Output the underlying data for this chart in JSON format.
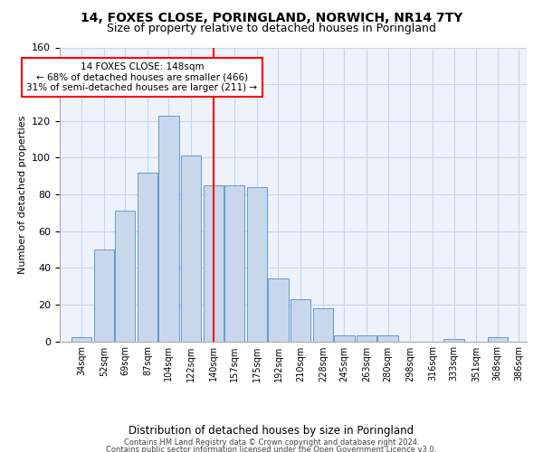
{
  "title": "14, FOXES CLOSE, PORINGLAND, NORWICH, NR14 7TY",
  "subtitle": "Size of property relative to detached houses in Poringland",
  "xlabel": "Distribution of detached houses by size in Poringland",
  "ylabel": "Number of detached properties",
  "bar_color": "#c8d8ec",
  "bar_edge_color": "#6699cc",
  "grid_color": "#c8d4e8",
  "background_color": "#eef2fa",
  "vline_x": 148.5,
  "vline_color": "red",
  "annotation_text": "14 FOXES CLOSE: 148sqm\n← 68% of detached houses are smaller (466)\n31% of semi-detached houses are larger (211) →",
  "footer_line1": "Contains HM Land Registry data © Crown copyright and database right 2024.",
  "footer_line2": "Contains public sector information licensed under the Open Government Licence v3.0.",
  "bins_left_edges": [
    34,
    52,
    69,
    87,
    104,
    122,
    140,
    157,
    175,
    192,
    210,
    228,
    245,
    263,
    280,
    298,
    316,
    333,
    351,
    368
  ],
  "bin_width": 17,
  "bar_heights": [
    2,
    50,
    71,
    92,
    123,
    101,
    85,
    85,
    84,
    34,
    23,
    18,
    3,
    3,
    3,
    0,
    0,
    1,
    0,
    2
  ],
  "xlim": [
    25,
    400
  ],
  "ylim": [
    0,
    160
  ],
  "yticks": [
    0,
    20,
    40,
    60,
    80,
    100,
    120,
    140,
    160
  ],
  "xtick_labels": [
    "34sqm",
    "52sqm",
    "69sqm",
    "87sqm",
    "104sqm",
    "122sqm",
    "140sqm",
    "157sqm",
    "175sqm",
    "192sqm",
    "210sqm",
    "228sqm",
    "245sqm",
    "263sqm",
    "280sqm",
    "298sqm",
    "316sqm",
    "333sqm",
    "351sqm",
    "368sqm",
    "386sqm"
  ],
  "title_fontsize": 10,
  "subtitle_fontsize": 9,
  "ylabel_fontsize": 8,
  "ytick_fontsize": 8,
  "xtick_fontsize": 7,
  "xlabel_fontsize": 8.5,
  "footer_fontsize": 6,
  "annotation_fontsize": 7.5
}
